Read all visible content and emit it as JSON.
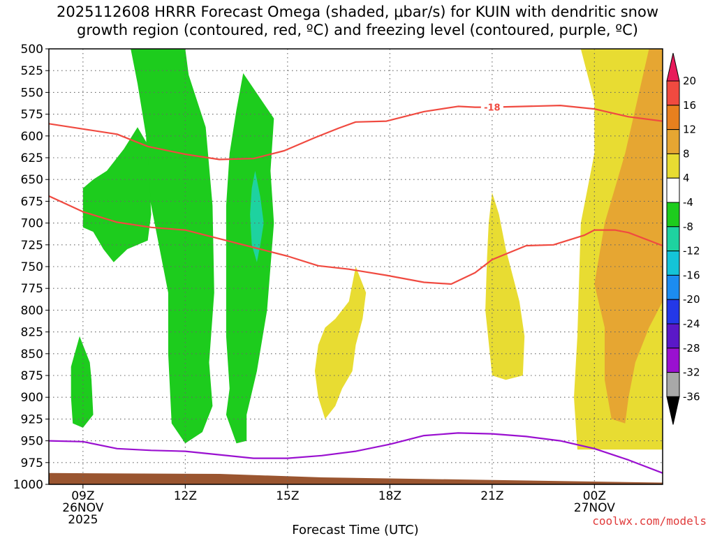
{
  "title_line1": "2025112608 HRRR Forecast Omega (shaded, μbar/s) for KUIN with dendritic snow",
  "title_line2": "growth region (contoured, red, ºC) and freezing level (contoured, purple, ºC)",
  "credit": "coolwx.com/models",
  "colors": {
    "green": "#1dcc1d",
    "teal": "#1ed2a0",
    "yellow": "#e8dc32",
    "orange": "#e6a632",
    "red_contour": "#f04a40",
    "purple_contour": "#9a10d0",
    "ground": "#9a5530"
  },
  "chart_data": {
    "type": "time-height cross-section",
    "xlabel": "Forecast Time (UTC)",
    "ylabel": "",
    "y_scale": "pressure (hPa), inverted",
    "ylim": [
      1000,
      500
    ],
    "yticks": [
      "500",
      "525",
      "550",
      "575",
      "600",
      "625",
      "650",
      "675",
      "700",
      "725",
      "750",
      "775",
      "800",
      "825",
      "850",
      "875",
      "900",
      "925",
      "950",
      "975",
      "1000"
    ],
    "x_ticks": [
      {
        "x": 9,
        "line1": "09Z",
        "line2": "26NOV",
        "line3": "2025"
      },
      {
        "x": 12,
        "line1": "12Z",
        "line2": "",
        "line3": ""
      },
      {
        "x": 15,
        "line1": "15Z",
        "line2": "",
        "line3": ""
      },
      {
        "x": 18,
        "line1": "18Z",
        "line2": "",
        "line3": ""
      },
      {
        "x": 21,
        "line1": "21Z",
        "line2": "",
        "line3": ""
      },
      {
        "x": 24,
        "line1": "00Z",
        "line2": "27NOV",
        "line3": ""
      }
    ],
    "xlim": [
      8,
      26
    ],
    "grid": true,
    "colorbar": {
      "labels": [
        "20",
        "16",
        "12",
        "8",
        "4",
        "-4",
        "-8",
        "-12",
        "-16",
        "-20",
        "-24",
        "-28",
        "-32",
        "-36"
      ],
      "colors": [
        "#ffffff",
        "#e81a5a",
        "#f04a40",
        "#e8801e",
        "#e6a632",
        "#e8dc32",
        "#ffffff",
        "#1dcc1d",
        "#1ed2a0",
        "#14c4d8",
        "#1c8cf0",
        "#2438e8",
        "#5a18c8",
        "#9a10d0",
        "#a8a8a8",
        "#000000"
      ]
    },
    "shaded_regions": [
      {
        "name": "omega -4 to -8",
        "color": "green",
        "points": [
          [
            10.4,
            500
          ],
          [
            12,
            500
          ],
          [
            12.1,
            530
          ],
          [
            12.6,
            590
          ],
          [
            12.8,
            680
          ],
          [
            12.85,
            780
          ],
          [
            12.7,
            860
          ],
          [
            12.8,
            910
          ],
          [
            12.5,
            940
          ],
          [
            12,
            953
          ],
          [
            11.6,
            930
          ],
          [
            11.5,
            850
          ],
          [
            11.5,
            780
          ],
          [
            11.1,
            700
          ],
          [
            10.9,
            660
          ],
          [
            10.85,
            600
          ],
          [
            10.6,
            540
          ]
        ]
      },
      {
        "name": "omega -4 to -8",
        "color": "green",
        "points": [
          [
            13.7,
            528
          ],
          [
            14.6,
            580
          ],
          [
            14.5,
            640
          ],
          [
            14.6,
            700
          ],
          [
            14.4,
            800
          ],
          [
            14.1,
            870
          ],
          [
            13.8,
            920
          ],
          [
            13.8,
            950
          ],
          [
            13.5,
            953
          ],
          [
            13.2,
            920
          ],
          [
            13.3,
            890
          ],
          [
            13.2,
            830
          ],
          [
            13.2,
            760
          ],
          [
            13.2,
            680
          ],
          [
            13.3,
            620
          ],
          [
            13.5,
            570
          ]
        ]
      },
      {
        "name": "omega -4 to -8",
        "color": "green",
        "points": [
          [
            9.0,
            660
          ],
          [
            9.3,
            650
          ],
          [
            9.7,
            640
          ],
          [
            10.2,
            615
          ],
          [
            10.6,
            590
          ],
          [
            10.9,
            610
          ],
          [
            11,
            690
          ],
          [
            10.9,
            720
          ],
          [
            10.3,
            730
          ],
          [
            9.9,
            745
          ],
          [
            9.6,
            730
          ],
          [
            9.3,
            710
          ],
          [
            9.0,
            705
          ]
        ]
      },
      {
        "name": "omega -4 to -8",
        "color": "green",
        "points": [
          [
            8.65,
            865
          ],
          [
            8.9,
            830
          ],
          [
            9.2,
            860
          ],
          [
            9.25,
            880
          ],
          [
            9.3,
            920
          ],
          [
            9.0,
            935
          ],
          [
            8.7,
            930
          ],
          [
            8.65,
            900
          ]
        ]
      },
      {
        "name": "omega -8 to -12",
        "color": "teal",
        "points": [
          [
            14.05,
            640
          ],
          [
            14.2,
            670
          ],
          [
            14.3,
            700
          ],
          [
            14.2,
            725
          ],
          [
            14.1,
            745
          ],
          [
            13.95,
            725
          ],
          [
            13.9,
            690
          ],
          [
            13.95,
            660
          ]
        ]
      },
      {
        "name": "omega 4 to 8",
        "color": "yellow",
        "points": [
          [
            16.1,
            820
          ],
          [
            16.4,
            810
          ],
          [
            16.8,
            790
          ],
          [
            17.0,
            750
          ],
          [
            17.3,
            780
          ],
          [
            17.2,
            810
          ],
          [
            17.0,
            840
          ],
          [
            16.9,
            870
          ],
          [
            16.6,
            890
          ],
          [
            16.4,
            910
          ],
          [
            16.1,
            925
          ],
          [
            15.9,
            900
          ],
          [
            15.8,
            870
          ],
          [
            15.9,
            840
          ]
        ]
      },
      {
        "name": "omega 4 to 8",
        "color": "yellow",
        "points": [
          [
            21,
            665
          ],
          [
            21.2,
            690
          ],
          [
            21.4,
            730
          ],
          [
            21.8,
            790
          ],
          [
            21.95,
            830
          ],
          [
            21.9,
            875
          ],
          [
            21.4,
            880
          ],
          [
            21,
            875
          ],
          [
            20.8,
            800
          ],
          [
            20.85,
            740
          ],
          [
            20.9,
            700
          ]
        ]
      },
      {
        "name": "omega 4 to 8",
        "color": "yellow",
        "points": [
          [
            23.6,
            500
          ],
          [
            26,
            500
          ],
          [
            26,
            960
          ],
          [
            23.5,
            960
          ],
          [
            23.4,
            900
          ],
          [
            23.5,
            830
          ],
          [
            23.6,
            700
          ],
          [
            24.0,
            620
          ],
          [
            24.0,
            560
          ]
        ]
      },
      {
        "name": "omega 8 to 12",
        "color": "orange",
        "points": [
          [
            25.6,
            500
          ],
          [
            26,
            500
          ],
          [
            26,
            790
          ],
          [
            25.6,
            820
          ],
          [
            25.2,
            860
          ],
          [
            25,
            900
          ],
          [
            24.9,
            930
          ],
          [
            24.5,
            925
          ],
          [
            24.3,
            880
          ],
          [
            24.3,
            820
          ],
          [
            24.0,
            770
          ],
          [
            24.3,
            700
          ],
          [
            24.9,
            620
          ]
        ]
      }
    ],
    "contours": [
      {
        "name": "-18 upper",
        "color": "red_contour",
        "label": "-18",
        "label_at": [
          21,
          567
        ],
        "points": [
          [
            8,
            586
          ],
          [
            9,
            592
          ],
          [
            10,
            598
          ],
          [
            10.9,
            612
          ],
          [
            12,
            621
          ],
          [
            13,
            627
          ],
          [
            14,
            626
          ],
          [
            14.9,
            617
          ],
          [
            15.8,
            602
          ],
          [
            16.5,
            591
          ],
          [
            17,
            584
          ],
          [
            17.9,
            583
          ],
          [
            19,
            572
          ],
          [
            20,
            566
          ],
          [
            20.5,
            567
          ],
          [
            21,
            567
          ],
          [
            22,
            566
          ],
          [
            23,
            565
          ],
          [
            24,
            569
          ],
          [
            25,
            578
          ],
          [
            26,
            583
          ]
        ]
      },
      {
        "name": "-18 lower",
        "color": "red_contour",
        "label": "",
        "points": [
          [
            8,
            669
          ],
          [
            9,
            687
          ],
          [
            10,
            699
          ],
          [
            11,
            705
          ],
          [
            12,
            708
          ],
          [
            13,
            718
          ],
          [
            14,
            728
          ],
          [
            15,
            738
          ],
          [
            15.9,
            749
          ],
          [
            16.8,
            753
          ],
          [
            17.9,
            760
          ],
          [
            19,
            768
          ],
          [
            19.8,
            770
          ],
          [
            20.5,
            757
          ],
          [
            21,
            742
          ],
          [
            22,
            726
          ],
          [
            22.8,
            725
          ],
          [
            23.7,
            714
          ],
          [
            24,
            708
          ],
          [
            24.6,
            708
          ],
          [
            25,
            711
          ],
          [
            26,
            726
          ]
        ]
      },
      {
        "name": "freezing level",
        "color": "purple_contour",
        "label": "",
        "points": [
          [
            8,
            950
          ],
          [
            9,
            951
          ],
          [
            10,
            959
          ],
          [
            11,
            961
          ],
          [
            12,
            962
          ],
          [
            13,
            966
          ],
          [
            14,
            970
          ],
          [
            15,
            970
          ],
          [
            16,
            967
          ],
          [
            17,
            962
          ],
          [
            18,
            954
          ],
          [
            19,
            944
          ],
          [
            20,
            941
          ],
          [
            21,
            942
          ],
          [
            22,
            945
          ],
          [
            23,
            950
          ],
          [
            24,
            959
          ],
          [
            25,
            972
          ],
          [
            26,
            987
          ]
        ]
      }
    ],
    "ground": {
      "label": "",
      "points": [
        [
          8,
          987
        ],
        [
          13,
          988
        ],
        [
          16,
          992
        ],
        [
          26,
          998
        ]
      ]
    }
  }
}
